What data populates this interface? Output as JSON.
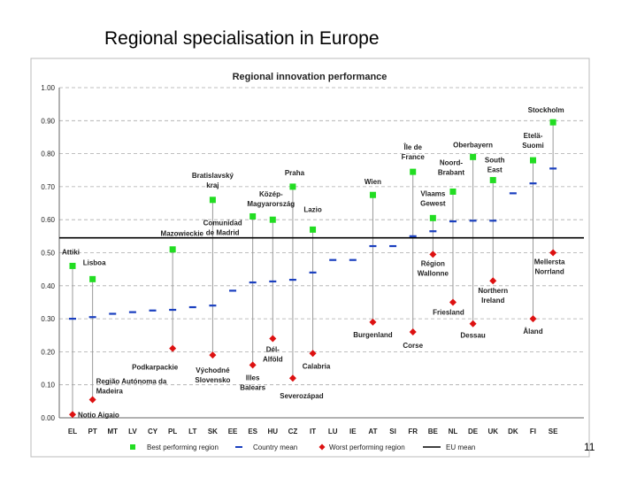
{
  "slide": {
    "title": "Regional specialisation in Europe",
    "page_number": "11"
  },
  "chart_data": {
    "type": "scatter",
    "title": "Regional innovation performance",
    "xlabel": "",
    "ylabel": "",
    "ylim": [
      0,
      1
    ],
    "yticks": [
      "0.00",
      "0.10",
      "0.20",
      "0.30",
      "0.40",
      "0.50",
      "0.60",
      "0.70",
      "0.80",
      "0.90",
      "1.00"
    ],
    "grid": true,
    "legend_position": "bottom",
    "categories": [
      "EL",
      "PT",
      "MT",
      "LV",
      "CY",
      "PL",
      "LT",
      "SK",
      "EE",
      "ES",
      "HU",
      "CZ",
      "IT",
      "LU",
      "IE",
      "AT",
      "SI",
      "FR",
      "BE",
      "NL",
      "DE",
      "UK",
      "DK",
      "FI",
      "SE"
    ],
    "eu_mean": 0.545,
    "eu_mean_label": "Mazowieckie",
    "colors": {
      "best": "#22dd22",
      "country_mean": "#1a3fbf",
      "worst": "#dd1111",
      "eu_mean": "#000000",
      "range_line": "#999999",
      "grid": "#aaaaaa"
    },
    "series": [
      {
        "name": "Best performing region",
        "values": [
          0.46,
          0.42,
          null,
          null,
          null,
          0.51,
          null,
          0.66,
          null,
          0.61,
          0.6,
          0.7,
          0.57,
          null,
          null,
          0.675,
          null,
          0.745,
          0.605,
          0.685,
          0.79,
          0.72,
          null,
          0.78,
          0.895
        ],
        "labels": [
          "Attiki",
          "Lisboa",
          "",
          "",
          "",
          "",
          "",
          "Bratislavský kraj",
          "",
          "Comunidad de Madrid",
          "Közép-Magyarország",
          "Praha",
          "Lazio",
          "",
          "",
          "Wien",
          "",
          "Île de France",
          "Vlaams Gewest",
          "Noord-Brabant",
          "Oberbayern",
          "South East",
          "",
          "Etelä-Suomi",
          "Stockholm"
        ]
      },
      {
        "name": "Country mean",
        "values": [
          0.3,
          0.305,
          0.315,
          0.32,
          0.325,
          0.327,
          0.335,
          0.34,
          0.385,
          0.41,
          0.413,
          0.418,
          0.44,
          0.478,
          0.478,
          0.52,
          0.52,
          0.55,
          0.565,
          0.595,
          0.597,
          0.597,
          0.68,
          0.71,
          0.755
        ]
      },
      {
        "name": "Worst performing region",
        "values": [
          0.01,
          0.055,
          null,
          null,
          null,
          0.21,
          null,
          0.19,
          null,
          0.16,
          0.24,
          0.12,
          0.195,
          null,
          null,
          0.29,
          null,
          0.26,
          0.495,
          0.35,
          0.285,
          0.415,
          null,
          0.3,
          0.5
        ],
        "labels": [
          "Notio Aigaio",
          "Região Autónoma da Madeira",
          "",
          "",
          "",
          "Podkarpackie",
          "",
          "Východné Slovensko",
          "",
          "Illes Balears",
          "Dél-Alföld",
          "Severozápad",
          "Calabria",
          "",
          "",
          "Burgenland",
          "",
          "Corse",
          "Région Wallonne",
          "Friesland",
          "Dessau",
          "Northern Ireland",
          "",
          "Åland",
          "Mellersta Norrland"
        ]
      },
      {
        "name": "EU mean"
      }
    ]
  }
}
